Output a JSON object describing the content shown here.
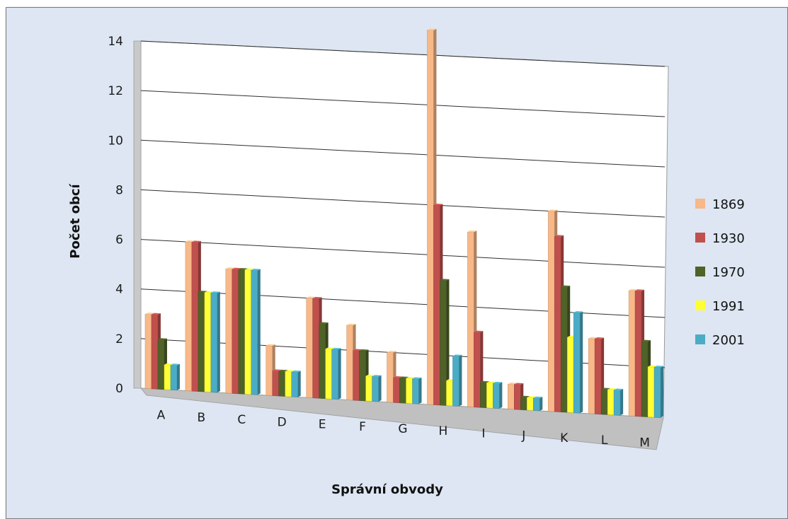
{
  "chart_data": {
    "type": "bar",
    "title": "",
    "xlabel": "Správní obvody",
    "ylabel": "Počet obcí",
    "ylim": [
      0,
      14
    ],
    "yticks": [
      "0",
      "2",
      "4",
      "6",
      "8",
      "10",
      "12",
      "14"
    ],
    "grid": true,
    "legend": "right",
    "categories": [
      "A",
      "B",
      "C",
      "D",
      "E",
      "F",
      "G",
      "H",
      "I",
      "J",
      "K",
      "L",
      "M"
    ],
    "series": [
      {
        "name": "1869",
        "color": "#f8b888",
        "values": [
          3,
          6,
          5,
          2,
          4,
          3,
          2,
          15,
          7,
          1,
          8,
          3,
          5
        ]
      },
      {
        "name": "1930",
        "color": "#c0504d",
        "values": [
          3,
          6,
          5,
          1,
          4,
          2,
          1,
          8,
          3,
          1,
          7,
          3,
          5
        ]
      },
      {
        "name": "1970",
        "color": "#4f6228",
        "values": [
          2,
          4,
          5,
          1,
          3,
          2,
          1,
          5,
          1,
          0.5,
          5,
          1,
          3
        ]
      },
      {
        "name": "1991",
        "color": "#ffff33",
        "values": [
          1,
          4,
          5,
          1,
          2,
          1,
          1,
          1,
          1,
          0.5,
          3,
          1,
          2
        ]
      },
      {
        "name": "2001",
        "color": "#4bacc6",
        "values": [
          1,
          4,
          5,
          1,
          2,
          1,
          1,
          2,
          1,
          0.5,
          4,
          1,
          2
        ]
      }
    ]
  }
}
